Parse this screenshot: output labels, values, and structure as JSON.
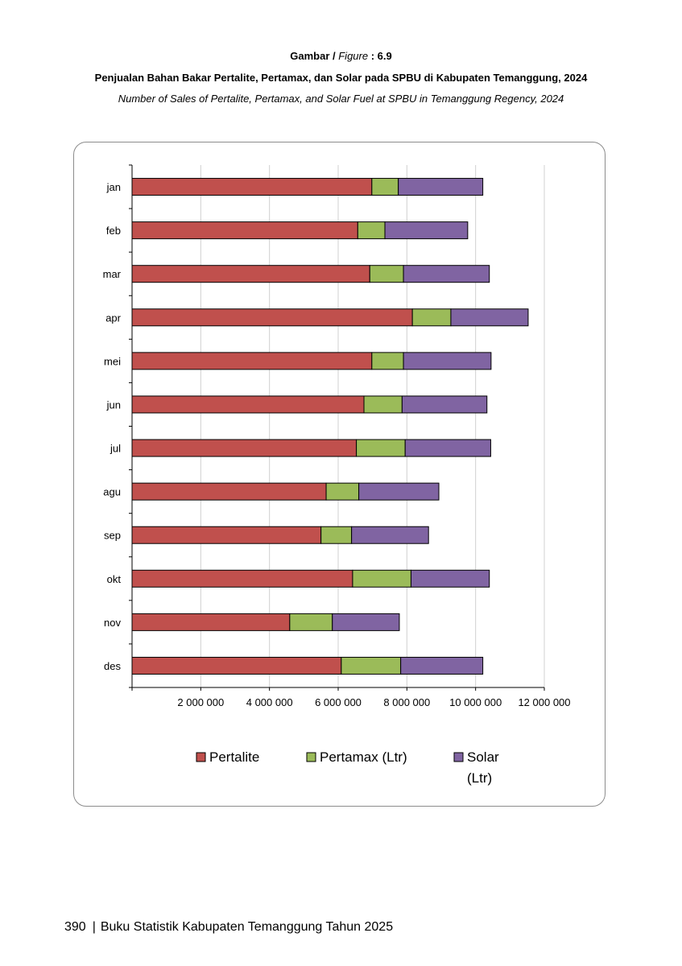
{
  "figure": {
    "label": "Gambar /",
    "label_en": "Figure",
    "number": ": 6.9",
    "title_id": "Penjualan Bahan Bakar Pertalite, Pertamax, dan Solar pada SPBU di Kabupaten Temanggung, 2024",
    "title_en": "Number of Sales of Pertalite, Pertamax, and Solar Fuel at SPBU in Temanggung Regency, 2024"
  },
  "chart_data": {
    "type": "bar",
    "orientation": "horizontal",
    "stacked": true,
    "categories": [
      "jan",
      "feb",
      "mar",
      "apr",
      "mei",
      "jun",
      "jul",
      "agu",
      "sep",
      "okt",
      "nov",
      "des"
    ],
    "series": [
      {
        "name": "Pertalite",
        "color": "#c0504d",
        "values": [
          6980000,
          6570000,
          6920000,
          8160000,
          6980000,
          6750000,
          6530000,
          5650000,
          5500000,
          6420000,
          4590000,
          6090000
        ]
      },
      {
        "name": "Pertamax (Ltr)",
        "color": "#9bbb59",
        "values": [
          770000,
          790000,
          980000,
          1120000,
          920000,
          1110000,
          1420000,
          950000,
          890000,
          1700000,
          1240000,
          1730000
        ]
      },
      {
        "name": "Solar (Ltr)",
        "color": "#8064a2",
        "values": [
          2460000,
          2410000,
          2500000,
          2250000,
          2550000,
          2470000,
          2490000,
          2330000,
          2240000,
          2280000,
          1950000,
          2390000
        ]
      }
    ],
    "xlim": [
      0,
      12000000
    ],
    "xticks": [
      0,
      2000000,
      4000000,
      6000000,
      8000000,
      10000000,
      12000000
    ],
    "xtick_labels": [
      "",
      "2 000 000",
      "4 000 000",
      "6 000 000",
      "8 000 000",
      "10 000 000",
      "12 000 000"
    ],
    "grid": true,
    "legend_position": "bottom",
    "legend": [
      "Pertalite",
      "Pertamax (Ltr)",
      "Solar"
    ],
    "legend_wrap": "(Ltr)"
  },
  "footer": {
    "page_number": "390",
    "book_title": "Buku Statistik Kabupaten Temanggung Tahun 2025"
  }
}
